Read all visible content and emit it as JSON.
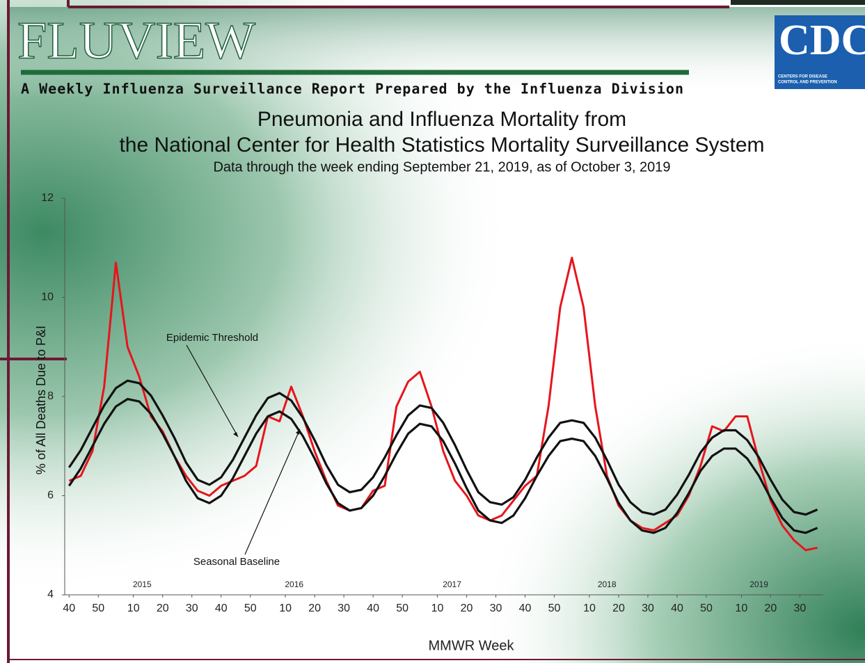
{
  "header": {
    "logo": "FLUVIEW",
    "tagline": "A Weekly Influenza Surveillance Report Prepared by the Influenza Division",
    "cdc": "CDC",
    "cdc_line1": "CENTERS FOR DISEASE",
    "cdc_line2": "CONTROL AND PREVENTION"
  },
  "chart_data": {
    "type": "line",
    "title": [
      "Pneumonia and Influenza Mortality from",
      "the National Center for Health Statistics Mortality Surveillance System"
    ],
    "subtitle": "Data through the week ending September 21, 2019, as of October 3, 2019",
    "xlabel": "MMWR Week",
    "ylabel": "% of All Deaths Due to P&I",
    "x": [
      0,
      4,
      8,
      12,
      16,
      20,
      24,
      28,
      32,
      36,
      40,
      44,
      48,
      52,
      56,
      60,
      64,
      68,
      72,
      76,
      80,
      84,
      88,
      92,
      96,
      100,
      104,
      108,
      112,
      116,
      120,
      124,
      128,
      132,
      136,
      140,
      144,
      148,
      152,
      156,
      160,
      164,
      168,
      172,
      176,
      180,
      184,
      188,
      192,
      196,
      200,
      204,
      208,
      212,
      216,
      220,
      224,
      228,
      232,
      236,
      240,
      244,
      248,
      252,
      256
    ],
    "series": [
      {
        "color": "#e8141b",
        "values": [
          6.3,
          6.4,
          6.9,
          8.2,
          10.7,
          9.0,
          8.4,
          7.6,
          7.3,
          6.8,
          6.4,
          6.1,
          6.0,
          6.2,
          6.3,
          6.4,
          6.6,
          7.6,
          7.5,
          8.2,
          7.6,
          6.9,
          6.3,
          5.8,
          5.7,
          5.75,
          6.1,
          6.2,
          7.8,
          8.3,
          8.5,
          7.8,
          6.9,
          6.3,
          6.0,
          5.6,
          5.5,
          5.6,
          5.9,
          6.2,
          6.4,
          7.8,
          9.8,
          10.8,
          9.8,
          7.8,
          6.4,
          5.8,
          5.5,
          5.35,
          5.3,
          5.45,
          5.6,
          6.0,
          6.6,
          7.4,
          7.3,
          7.6,
          7.6,
          6.7,
          5.9,
          5.4,
          5.1,
          4.9,
          4.95
        ]
      },
      {
        "name": "Epidemic Threshold",
        "color": "#111111",
        "values": [
          6.57,
          6.92,
          7.37,
          7.82,
          8.17,
          8.32,
          8.27,
          8.02,
          7.62,
          7.17,
          6.67,
          6.32,
          6.22,
          6.37,
          6.72,
          7.17,
          7.62,
          7.97,
          8.07,
          7.92,
          7.57,
          7.12,
          6.62,
          6.22,
          6.07,
          6.12,
          6.37,
          6.77,
          7.22,
          7.62,
          7.82,
          7.77,
          7.47,
          7.02,
          6.52,
          6.07,
          5.87,
          5.82,
          5.97,
          6.32,
          6.77,
          7.17,
          7.47,
          7.52,
          7.47,
          7.17,
          6.72,
          6.22,
          5.87,
          5.67,
          5.62,
          5.72,
          6.02,
          6.42,
          6.87,
          7.17,
          7.32,
          7.32,
          7.12,
          6.77,
          6.32,
          5.92,
          5.67,
          5.62,
          5.72
        ]
      },
      {
        "name": "Seasonal Baseline",
        "color": "#111111",
        "values": [
          6.2,
          6.55,
          7.0,
          7.45,
          7.8,
          7.95,
          7.9,
          7.65,
          7.25,
          6.8,
          6.3,
          5.95,
          5.85,
          6.0,
          6.35,
          6.8,
          7.25,
          7.6,
          7.7,
          7.55,
          7.2,
          6.75,
          6.25,
          5.85,
          5.7,
          5.75,
          6.0,
          6.4,
          6.85,
          7.25,
          7.45,
          7.4,
          7.1,
          6.65,
          6.15,
          5.7,
          5.5,
          5.45,
          5.6,
          5.95,
          6.4,
          6.8,
          7.1,
          7.15,
          7.1,
          6.8,
          6.35,
          5.85,
          5.5,
          5.3,
          5.25,
          5.35,
          5.65,
          6.05,
          6.5,
          6.8,
          6.95,
          6.95,
          6.75,
          6.4,
          5.95,
          5.55,
          5.3,
          5.25,
          5.35
        ]
      }
    ],
    "xlim": [
      -1.5,
      258
    ],
    "ylim": [
      4,
      12
    ],
    "yticks": [
      4,
      6,
      8,
      10,
      12
    ],
    "xticks": [
      {
        "value": 0,
        "label": "40"
      },
      {
        "value": 10,
        "label": "50"
      },
      {
        "value": 22,
        "label": "10"
      },
      {
        "value": 32,
        "label": "20"
      },
      {
        "value": 42,
        "label": "30"
      },
      {
        "value": 52,
        "label": "40"
      },
      {
        "value": 62,
        "label": "50"
      },
      {
        "value": 74,
        "label": "10"
      },
      {
        "value": 84,
        "label": "20"
      },
      {
        "value": 94,
        "label": "30"
      },
      {
        "value": 104,
        "label": "40"
      },
      {
        "value": 114,
        "label": "50"
      },
      {
        "value": 126,
        "label": "10"
      },
      {
        "value": 136,
        "label": "20"
      },
      {
        "value": 146,
        "label": "30"
      },
      {
        "value": 156,
        "label": "40"
      },
      {
        "value": 166,
        "label": "50"
      },
      {
        "value": 178,
        "label": "10"
      },
      {
        "value": 188,
        "label": "20"
      },
      {
        "value": 198,
        "label": "30"
      },
      {
        "value": 208,
        "label": "40"
      },
      {
        "value": 218,
        "label": "50"
      },
      {
        "value": 230,
        "label": "10"
      },
      {
        "value": 240,
        "label": "20"
      },
      {
        "value": 250,
        "label": "30"
      }
    ],
    "year_labels": [
      {
        "x": 25,
        "label": "2015"
      },
      {
        "x": 77,
        "label": "2016"
      },
      {
        "x": 131,
        "label": "2017"
      },
      {
        "x": 184,
        "label": "2018"
      },
      {
        "x": 236,
        "label": "2019"
      }
    ]
  }
}
